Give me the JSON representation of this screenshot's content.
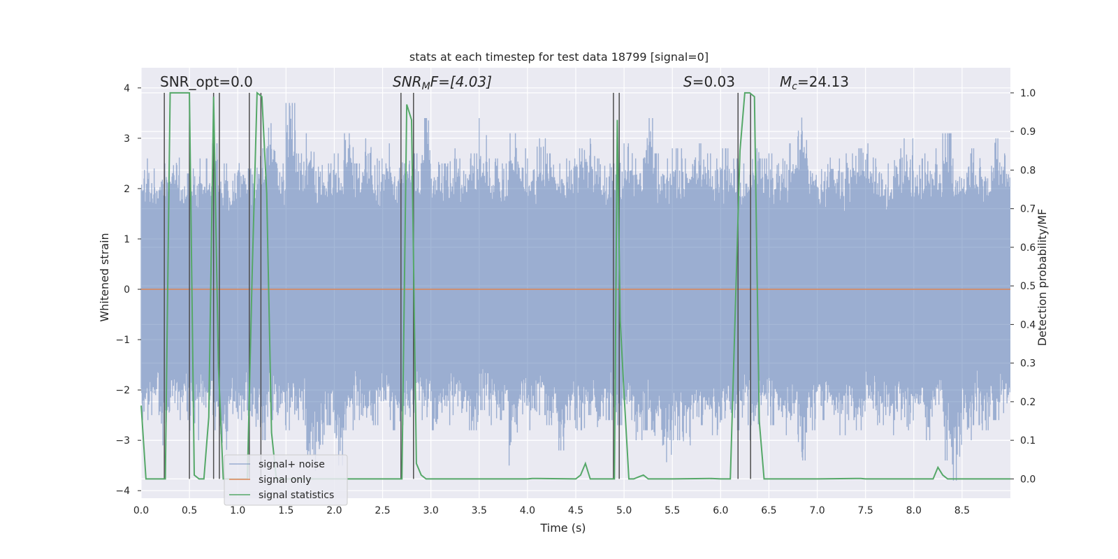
{
  "chart_data": {
    "type": "line",
    "title": "stats at each timestep for test data 18799 [signal=0]",
    "xlabel": "Time (s)",
    "ylabel": "Whitened strain",
    "ylabel_right": "Detection probability/MF",
    "xlim": [
      0.0,
      9.0
    ],
    "ylim": [
      -4.15,
      4.4
    ],
    "ylim_right": [
      -0.05,
      1.065
    ],
    "xticks": [
      "0.0",
      "0.5",
      "1.0",
      "1.5",
      "2.0",
      "2.5",
      "3.0",
      "3.5",
      "4.0",
      "4.5",
      "5.0",
      "5.5",
      "6.0",
      "6.5",
      "7.0",
      "7.5",
      "8.0",
      "8.5"
    ],
    "xtick_values": [
      0.0,
      0.5,
      1.0,
      1.5,
      2.0,
      2.5,
      3.0,
      3.5,
      4.0,
      4.5,
      5.0,
      5.5,
      6.0,
      6.5,
      7.0,
      7.5,
      8.0,
      8.5
    ],
    "yticks": [
      "4",
      "3",
      "2",
      "1",
      "0",
      "−1",
      "−2",
      "−3",
      "−4"
    ],
    "ytick_values": [
      4,
      3,
      2,
      1,
      0,
      -1,
      -2,
      -3,
      -4
    ],
    "yticks_right": [
      "1.0",
      "0.9",
      "0.8",
      "0.7",
      "0.6",
      "0.5",
      "0.4",
      "0.3",
      "0.2",
      "0.1",
      "0.0"
    ],
    "ytick_right_values": [
      1.0,
      0.9,
      0.8,
      0.7,
      0.6,
      0.5,
      0.4,
      0.3,
      0.2,
      0.1,
      0.0
    ],
    "annotations": {
      "snr_opt": "SNR_opt=0.0",
      "snr_mf_main": "SNR",
      "snr_mf_sub": "M",
      "snr_mf_rest": "F=[4.03]",
      "s_var": "S",
      "s_rest": "=0.03",
      "mc_var": "M",
      "mc_sub": "c",
      "mc_rest": "=24.13"
    },
    "legend": [
      "signal+ noise",
      "signal only",
      "signal statistics"
    ],
    "colors": {
      "noise": "#4c72b0",
      "signal": "#dd8452",
      "stats": "#55a868",
      "vline": "#4d4d4d",
      "bg": "#eaeaf2",
      "grid": "#ffffff"
    },
    "series": [
      {
        "name": "signal+ noise",
        "description_values": "dense Gaussian noise, amplitude mostly within ±2.5, peaks to ±3.8",
        "envelope_upper": [
          2.6,
          2.4,
          2.5,
          2.8,
          2.3,
          2.4,
          2.6,
          2.9,
          2.5,
          2.3,
          2.6,
          2.4,
          2.8,
          3.6,
          2.5,
          3.7,
          2.7,
          3.1,
          2.6,
          2.5,
          2.7,
          3.1,
          2.5,
          3.0,
          2.6,
          2.9,
          2.6,
          2.8,
          2.7,
          3.4,
          2.6,
          2.5,
          2.8,
          2.6,
          2.7,
          3.4,
          2.6,
          2.5,
          3.1,
          2.8,
          2.6,
          3.0,
          2.7,
          2.5,
          2.6,
          2.8,
          3.0,
          2.6,
          2.5,
          2.7,
          2.9,
          2.6,
          3.4,
          2.7,
          2.6,
          2.8,
          2.6,
          2.9,
          2.7,
          2.6,
          2.8,
          2.6,
          2.5,
          2.8,
          2.6,
          2.7,
          2.6,
          2.9,
          3.6,
          2.7,
          2.6,
          2.8,
          2.6,
          2.7,
          2.8,
          2.9,
          2.6,
          2.5,
          2.8,
          3.0,
          2.6,
          2.7,
          2.8,
          3.1,
          2.6,
          2.7,
          2.8,
          2.6,
          3.0,
          2.7
        ],
        "envelope_lower": [
          -2.6,
          -2.5,
          -3.1,
          -2.4,
          -2.6,
          -3.0,
          -2.5,
          -2.8,
          -3.4,
          -2.7,
          -2.6,
          -2.9,
          -3.0,
          -2.6,
          -2.7,
          -2.8,
          -2.6,
          -3.3,
          -3.6,
          -2.7,
          -3.5,
          -2.8,
          -2.6,
          -2.9,
          -2.7,
          -2.6,
          -2.8,
          -2.7,
          -2.5,
          -2.6,
          -2.8,
          -2.7,
          -2.5,
          -2.6,
          -2.8,
          -2.4,
          -2.7,
          -2.6,
          -3.5,
          -2.6,
          -2.8,
          -2.5,
          -2.7,
          -3.2,
          -2.6,
          -2.8,
          -2.5,
          -2.9,
          -2.6,
          -2.7,
          -2.6,
          -3.0,
          -2.8,
          -3.3,
          -3.6,
          -3.0,
          -3.1,
          -2.8,
          -2.7,
          -2.9,
          -2.6,
          -2.8,
          -2.7,
          -3.0,
          -2.6,
          -2.7,
          -2.9,
          -2.6,
          -3.4,
          -2.8,
          -2.6,
          -2.7,
          -2.9,
          -2.6,
          -2.8,
          -2.6,
          -2.7,
          -2.9,
          -2.6,
          -2.8,
          -2.7,
          -3.0,
          -2.6,
          -3.4,
          -3.8,
          -3.0,
          -2.7,
          -2.8,
          -2.6,
          -2.5
        ]
      },
      {
        "name": "signal only",
        "x": [
          0.0,
          9.0
        ],
        "y": [
          0.0,
          0.0
        ]
      },
      {
        "name": "signal statistics",
        "axis": "right",
        "x": [
          0.0,
          0.05,
          0.1,
          0.15,
          0.2,
          0.25,
          0.3,
          0.35,
          0.4,
          0.45,
          0.5,
          0.55,
          0.6,
          0.65,
          0.7,
          0.75,
          0.8,
          0.85,
          0.9,
          0.95,
          1.0,
          1.05,
          1.1,
          1.15,
          1.2,
          1.25,
          1.3,
          1.35,
          1.4,
          1.45,
          1.5,
          2.0,
          2.5,
          2.65,
          2.7,
          2.75,
          2.8,
          2.85,
          2.9,
          2.95,
          3.0,
          3.5,
          4.0,
          4.05,
          4.1,
          4.5,
          4.55,
          4.6,
          4.65,
          4.7,
          4.85,
          4.9,
          4.93,
          4.96,
          5.0,
          5.05,
          5.1,
          5.15,
          5.2,
          5.25,
          5.3,
          5.5,
          5.9,
          6.0,
          6.1,
          6.2,
          6.25,
          6.3,
          6.35,
          6.4,
          6.45,
          6.5,
          7.0,
          7.4,
          7.45,
          7.5,
          8.0,
          8.15,
          8.2,
          8.25,
          8.3,
          8.35,
          8.4,
          9.0
        ],
        "y": [
          0.19,
          0.0,
          0.0,
          0.0,
          0.0,
          0.0,
          1.0,
          1.0,
          1.0,
          1.0,
          1.0,
          0.01,
          0.0,
          0.0,
          0.16,
          0.99,
          0.29,
          0.0,
          0.0,
          0.0,
          0.0,
          0.0,
          0.0,
          0.54,
          1.0,
          0.99,
          0.74,
          0.12,
          0.0,
          0.0,
          0.0,
          0.0,
          0.0,
          0.0,
          0.0,
          0.97,
          0.93,
          0.04,
          0.01,
          0.0,
          0.0,
          0.0,
          0.0,
          0.001,
          0.001,
          0.0,
          0.01,
          0.04,
          0.0,
          0.0,
          0.0,
          0.0,
          0.93,
          0.41,
          0.22,
          0.0,
          0.0,
          0.005,
          0.01,
          0.0,
          0.0,
          0.0,
          0.001,
          0.0,
          0.0,
          0.85,
          1.0,
          1.0,
          0.99,
          0.15,
          0.0,
          0.0,
          0.0,
          0.001,
          0.001,
          0.0,
          0.0,
          0.0,
          0.0,
          0.03,
          0.01,
          0.0,
          0.0,
          0.0
        ]
      }
    ],
    "vlines_x": [
      0.24,
      0.5,
      0.75,
      0.81,
      1.12,
      1.24,
      2.69,
      2.82,
      4.89,
      4.95,
      6.18,
      6.31
    ]
  }
}
